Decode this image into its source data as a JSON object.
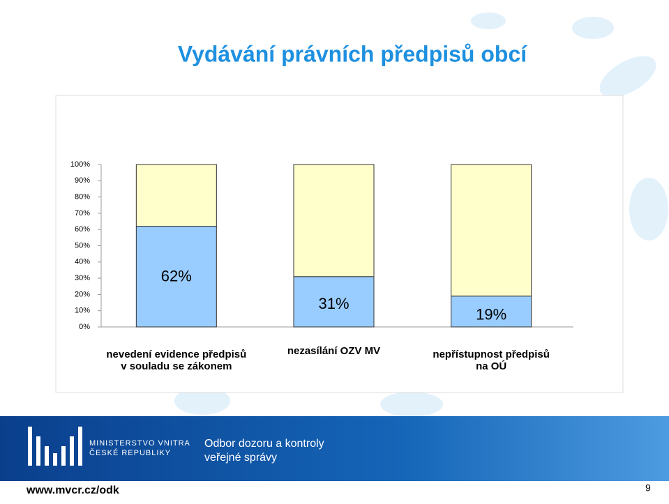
{
  "chart_data": {
    "type": "stacked_bar",
    "title": "Vydávání právních předpisů obcí",
    "categories": [
      "nevedení evidence předpisů\nv souladu se zákonem",
      "nezasílání OZV MV",
      "nepřístupnost předpisů\nna OÚ"
    ],
    "series": [
      {
        "color": "#99ccff",
        "values": [
          62,
          31,
          19
        ],
        "value_labels": [
          "62%",
          "31%",
          "19%"
        ]
      },
      {
        "color": "#ffffcc",
        "values": [
          38,
          69,
          81
        ]
      }
    ],
    "ylim": [
      0,
      100
    ],
    "yticks": [
      {
        "value": 0,
        "label": "0%"
      },
      {
        "value": 10,
        "label": "10%"
      },
      {
        "value": 20,
        "label": "20%"
      },
      {
        "value": 30,
        "label": "30%"
      },
      {
        "value": 40,
        "label": "40%"
      },
      {
        "value": 50,
        "label": "50%"
      },
      {
        "value": 60,
        "label": "60%"
      },
      {
        "value": 70,
        "label": "70%"
      },
      {
        "value": 80,
        "label": "80%"
      },
      {
        "value": 90,
        "label": "90%"
      },
      {
        "value": 100,
        "label": "100%"
      }
    ]
  },
  "footer": {
    "ministry_line1": "MINISTERSTVO VNITRA",
    "ministry_line2": "ČESKÉ REPUBLIKY",
    "department_line1": "Odbor dozoru a kontroly",
    "department_line2": "veřejné správy",
    "url": "www.mvcr.cz/odk",
    "page_number": "9"
  }
}
